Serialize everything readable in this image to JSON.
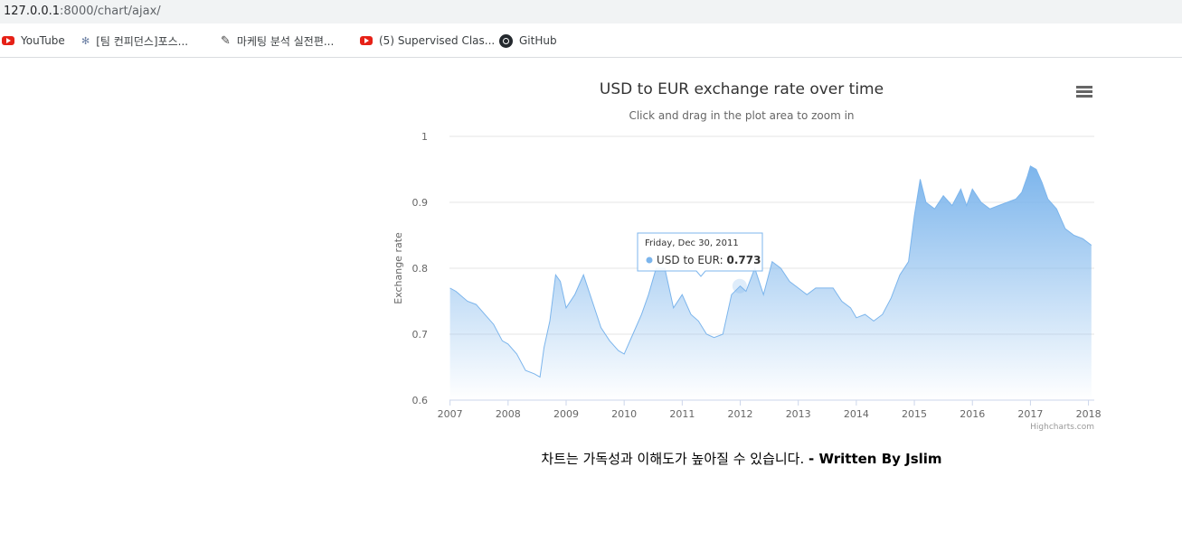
{
  "browser": {
    "url_host": "127.0.0.1",
    "url_path": ":8000/chart/ajax/"
  },
  "bookmarks": [
    {
      "label": "YouTube",
      "icon": "youtube-icon"
    },
    {
      "label": "[팀 컨피던스]포스...",
      "icon": "confluence-icon"
    },
    {
      "label": "마케팅 분석 실전편...",
      "icon": "pen-icon"
    },
    {
      "label": "(5) Supervised Clas...",
      "icon": "youtube-icon"
    },
    {
      "label": "GitHub",
      "icon": "github-icon"
    }
  ],
  "chart_data": {
    "type": "area",
    "title": "USD to EUR exchange rate over time",
    "subtitle": "Click and drag in the plot area to zoom in",
    "xlabel": "",
    "ylabel": "Exchange rate",
    "ylim": [
      0.6,
      1.0
    ],
    "y_ticks": [
      "1",
      "0.9",
      "0.8",
      "0.7",
      "0.6"
    ],
    "x_ticks": [
      "2007",
      "2008",
      "2009",
      "2010",
      "2011",
      "2012",
      "2013",
      "2014",
      "2015",
      "2016",
      "2017",
      "2018"
    ],
    "xlim": [
      2006.99,
      2018.1
    ],
    "grid": true,
    "legend": "none",
    "credits": "Highcharts.com",
    "color": "#7cb5ec",
    "series": [
      {
        "name": "USD to EUR",
        "x": [
          2007.0,
          2007.1,
          2007.3,
          2007.45,
          2007.6,
          2007.75,
          2007.9,
          2008.0,
          2008.15,
          2008.3,
          2008.45,
          2008.55,
          2008.62,
          2008.72,
          2008.82,
          2008.9,
          2009.0,
          2009.15,
          2009.3,
          2009.45,
          2009.6,
          2009.75,
          2009.9,
          2010.0,
          2010.15,
          2010.3,
          2010.42,
          2010.55,
          2010.7,
          2010.85,
          2011.0,
          2011.15,
          2011.28,
          2011.42,
          2011.55,
          2011.7,
          2011.85,
          2012.0,
          2012.1,
          2012.25,
          2012.4,
          2012.55,
          2012.7,
          2012.85,
          2013.0,
          2013.15,
          2013.3,
          2013.45,
          2013.6,
          2013.75,
          2013.9,
          2014.0,
          2014.15,
          2014.3,
          2014.45,
          2014.6,
          2014.75,
          2014.9,
          2015.0,
          2015.1,
          2015.2,
          2015.35,
          2015.5,
          2015.65,
          2015.8,
          2015.9,
          2016.0,
          2016.15,
          2016.3,
          2016.45,
          2016.6,
          2016.75,
          2016.85,
          2016.95,
          2017.0,
          2017.1,
          2017.2,
          2017.3,
          2017.45,
          2017.6,
          2017.75,
          2017.9,
          2018.05
        ],
        "y": [
          0.77,
          0.765,
          0.75,
          0.745,
          0.73,
          0.715,
          0.69,
          0.685,
          0.67,
          0.645,
          0.64,
          0.635,
          0.68,
          0.72,
          0.79,
          0.78,
          0.74,
          0.76,
          0.79,
          0.75,
          0.71,
          0.69,
          0.675,
          0.67,
          0.7,
          0.73,
          0.76,
          0.8,
          0.8,
          0.74,
          0.76,
          0.73,
          0.72,
          0.7,
          0.695,
          0.7,
          0.76,
          0.773,
          0.765,
          0.8,
          0.76,
          0.81,
          0.8,
          0.78,
          0.77,
          0.76,
          0.77,
          0.77,
          0.77,
          0.75,
          0.74,
          0.725,
          0.73,
          0.72,
          0.73,
          0.755,
          0.79,
          0.81,
          0.88,
          0.935,
          0.9,
          0.89,
          0.91,
          0.895,
          0.92,
          0.895,
          0.92,
          0.9,
          0.89,
          0.895,
          0.9,
          0.905,
          0.915,
          0.94,
          0.955,
          0.95,
          0.93,
          0.905,
          0.89,
          0.86,
          0.85,
          0.845,
          0.835
        ]
      }
    ],
    "tooltip": {
      "date": "Friday, Dec 30, 2011",
      "series": "USD to EUR",
      "value": "0.773",
      "x": 2011.99,
      "y": 0.773
    }
  },
  "caption": {
    "text": "차트는 가독성과 이해도가 높아질 수 있습니다. ",
    "bold": "- Written By Jslim"
  }
}
